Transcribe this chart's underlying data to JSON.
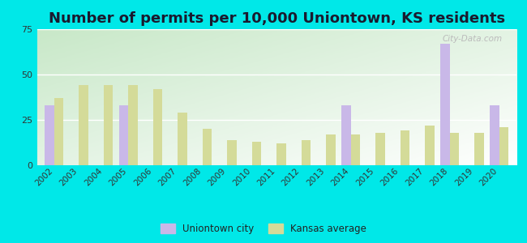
{
  "title": "Number of permits per 10,000 Uniontown, KS residents",
  "years": [
    2002,
    2003,
    2004,
    2005,
    2006,
    2007,
    2008,
    2009,
    2010,
    2011,
    2012,
    2013,
    2014,
    2015,
    2016,
    2017,
    2018,
    2019,
    2020
  ],
  "uniontown": [
    33,
    0,
    0,
    33,
    0,
    0,
    0,
    0,
    0,
    0,
    0,
    0,
    33,
    0,
    0,
    0,
    67,
    0,
    33
  ],
  "kansas": [
    37,
    44,
    44,
    44,
    42,
    29,
    20,
    14,
    13,
    12,
    14,
    17,
    17,
    18,
    19,
    22,
    18,
    18,
    21
  ],
  "uniontown_color": "#c9b8e8",
  "kansas_color": "#d4db99",
  "bg_color_top": "#c8e8c8",
  "bg_color_bottom": "#f0faf0",
  "outer_bg": "#00e8e8",
  "ylim": [
    0,
    75
  ],
  "yticks": [
    0,
    25,
    50,
    75
  ],
  "bar_width": 0.38,
  "legend_uniontown": "Uniontown city",
  "legend_kansas": "Kansas average",
  "title_fontsize": 13,
  "watermark": "City-Data.com"
}
